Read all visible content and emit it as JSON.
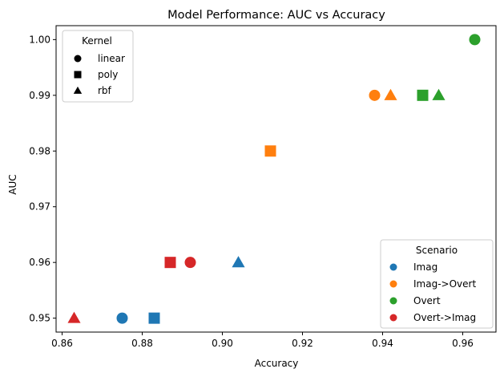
{
  "chart_data": {
    "type": "scatter",
    "title": "Model Performance: AUC vs Accuracy",
    "xlabel": "Accuracy",
    "ylabel": "AUC",
    "xlim": [
      0.8585,
      0.9683
    ],
    "ylim": [
      0.9475,
      1.0025
    ],
    "xticks": [
      "0.86",
      "0.88",
      "0.90",
      "0.92",
      "0.94",
      "0.96"
    ],
    "yticks": [
      "0.95",
      "0.96",
      "0.97",
      "0.98",
      "0.99",
      "1.00"
    ],
    "grid": false,
    "scenario_legend": {
      "title": "Scenario",
      "placement": "lower-right",
      "entries": [
        {
          "label": "Imag",
          "color": "#1f77b4"
        },
        {
          "label": "Imag->Overt",
          "color": "#ff7f0e"
        },
        {
          "label": "Overt",
          "color": "#2ca02c"
        },
        {
          "label": "Overt->Imag",
          "color": "#d62728"
        }
      ]
    },
    "kernel_legend": {
      "title": "Kernel",
      "placement": "upper-left",
      "entries": [
        {
          "label": "linear",
          "marker": "circle"
        },
        {
          "label": "poly",
          "marker": "square"
        },
        {
          "label": "rbf",
          "marker": "triangle"
        }
      ]
    },
    "points": [
      {
        "scenario": "Imag",
        "kernel": "linear",
        "x": 0.875,
        "y": 0.95
      },
      {
        "scenario": "Imag",
        "kernel": "poly",
        "x": 0.883,
        "y": 0.95
      },
      {
        "scenario": "Imag",
        "kernel": "rbf",
        "x": 0.904,
        "y": 0.96
      },
      {
        "scenario": "Imag->Overt",
        "kernel": "linear",
        "x": 0.938,
        "y": 0.99
      },
      {
        "scenario": "Imag->Overt",
        "kernel": "poly",
        "x": 0.912,
        "y": 0.98
      },
      {
        "scenario": "Imag->Overt",
        "kernel": "rbf",
        "x": 0.942,
        "y": 0.99
      },
      {
        "scenario": "Overt",
        "kernel": "linear",
        "x": 0.963,
        "y": 1.0
      },
      {
        "scenario": "Overt",
        "kernel": "poly",
        "x": 0.95,
        "y": 0.99
      },
      {
        "scenario": "Overt",
        "kernel": "rbf",
        "x": 0.954,
        "y": 0.99
      },
      {
        "scenario": "Overt->Imag",
        "kernel": "linear",
        "x": 0.892,
        "y": 0.96
      },
      {
        "scenario": "Overt->Imag",
        "kernel": "poly",
        "x": 0.887,
        "y": 0.96
      },
      {
        "scenario": "Overt->Imag",
        "kernel": "rbf",
        "x": 0.863,
        "y": 0.95
      }
    ]
  }
}
